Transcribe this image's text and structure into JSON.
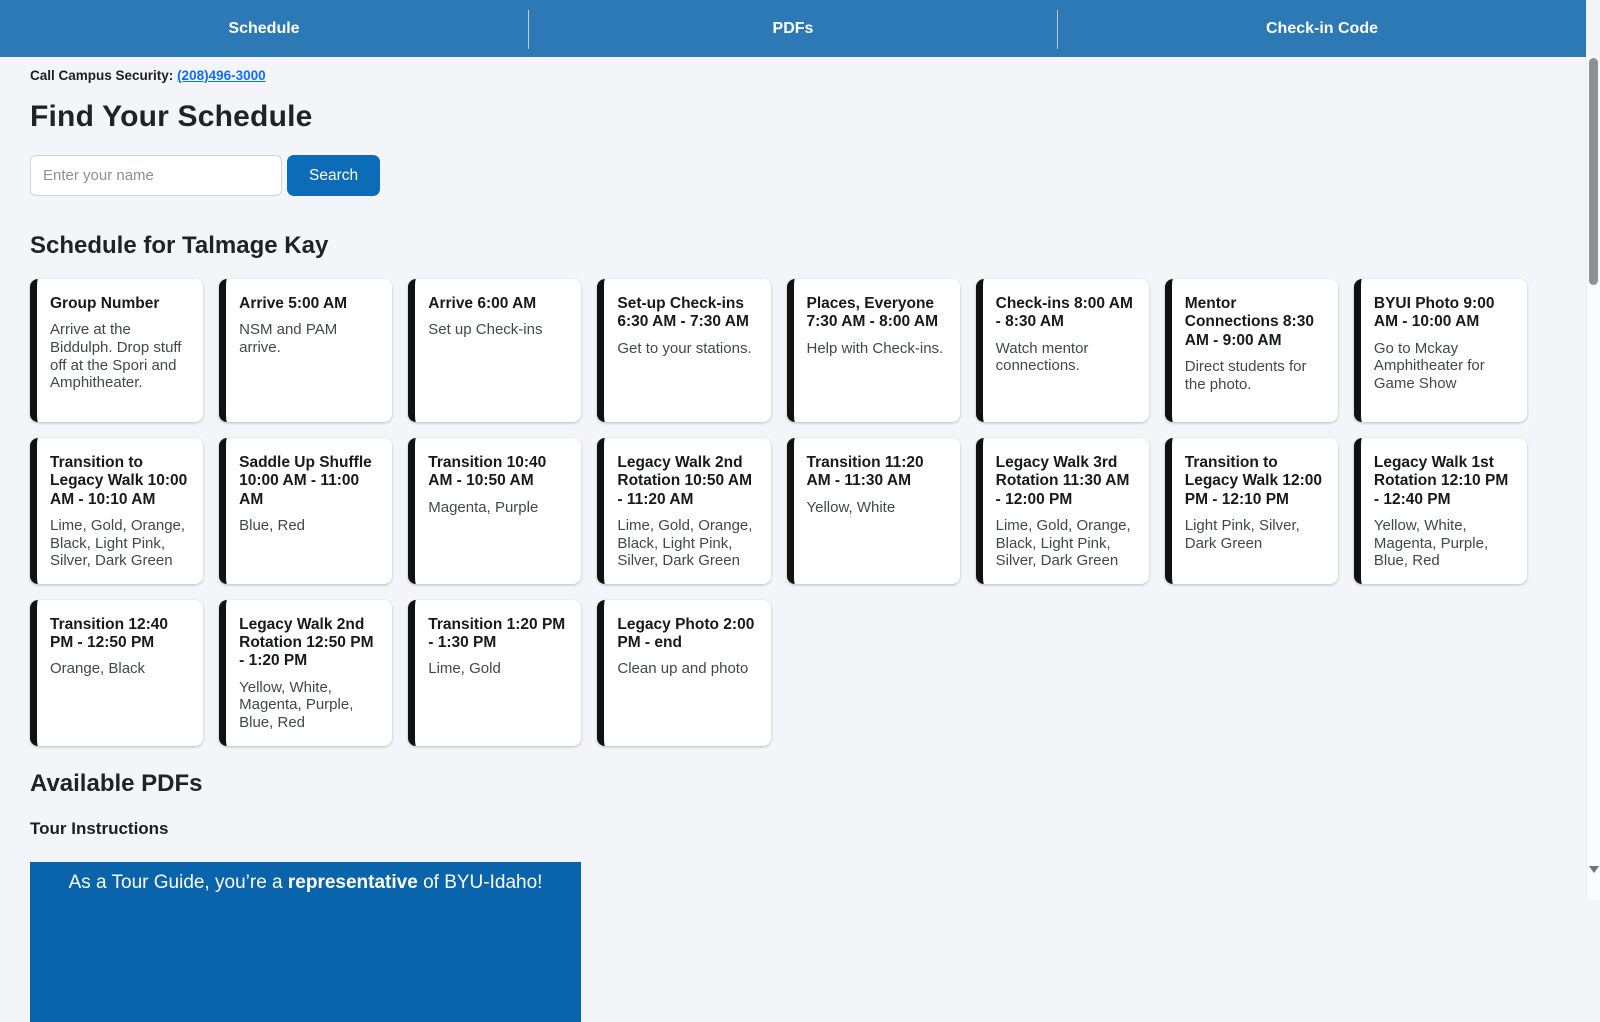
{
  "colors": {
    "nav_bg": "#2d79b5",
    "nav_text": "#ffffff",
    "accent_blue": "#0d6cb8",
    "banner_bg": "#0a64ab",
    "link_blue": "#0d6efd",
    "page_bg": "#f3f5f8",
    "card_bg": "#ffffff",
    "card_accent": "#111111",
    "title_text": "#17191c",
    "body_text": "#43474c"
  },
  "nav": {
    "tabs": [
      {
        "label": "Schedule"
      },
      {
        "label": "PDFs"
      },
      {
        "label": "Check-in Code"
      }
    ]
  },
  "security": {
    "label": "Call Campus Security:",
    "phone": "(208)496-3000"
  },
  "search": {
    "heading": "Find Your Schedule",
    "placeholder": "Enter your name",
    "button": "Search"
  },
  "schedule": {
    "heading": "Schedule for Talmage Kay",
    "cards": [
      {
        "title": "Group Number",
        "description": "Arrive at the Biddulph. Drop stuff off at the Spori and Amphitheater."
      },
      {
        "title": "Arrive 5:00 AM",
        "description": "NSM and PAM arrive."
      },
      {
        "title": "Arrive 6:00 AM",
        "description": "Set up Check-ins"
      },
      {
        "title": "Set-up Check-ins 6:30 AM - 7:30 AM",
        "description": "Get to your stations."
      },
      {
        "title": "Places, Everyone 7:30 AM - 8:00 AM",
        "description": "Help with Check-ins."
      },
      {
        "title": "Check-ins 8:00 AM - 8:30 AM",
        "description": "Watch mentor connections."
      },
      {
        "title": "Mentor Connections 8:30 AM - 9:00 AM",
        "description": "Direct students for the photo."
      },
      {
        "title": "BYUI Photo 9:00 AM - 10:00 AM",
        "description": "Go to Mckay Amphitheater for Game Show"
      },
      {
        "title": "Transition to Legacy Walk 10:00 AM - 10:10 AM",
        "description": "Lime, Gold, Orange, Black, Light Pink, Silver, Dark Green"
      },
      {
        "title": "Saddle Up Shuffle 10:00 AM - 11:00 AM",
        "description": "Blue, Red"
      },
      {
        "title": "Transition 10:40 AM - 10:50 AM",
        "description": "Magenta, Purple"
      },
      {
        "title": "Legacy Walk 2nd Rotation 10:50 AM - 11:20 AM",
        "description": "Lime, Gold, Orange, Black, Light Pink, Silver, Dark Green"
      },
      {
        "title": "Transition 11:20 AM - 11:30 AM",
        "description": "Yellow, White"
      },
      {
        "title": "Legacy Walk 3rd Rotation 11:30 AM - 12:00 PM",
        "description": "Lime, Gold, Orange, Black, Light Pink, Silver, Dark Green"
      },
      {
        "title": "Transition to Legacy Walk 12:00 PM - 12:10 PM",
        "description": "Light Pink, Silver, Dark Green"
      },
      {
        "title": "Legacy Walk 1st Rotation 12:10 PM - 12:40 PM",
        "description": "Yellow, White, Magenta, Purple, Blue, Red"
      },
      {
        "title": "Transition 12:40 PM - 12:50 PM",
        "description": "Orange, Black"
      },
      {
        "title": "Legacy Walk 2nd Rotation 12:50 PM - 1:20 PM",
        "description": "Yellow, White, Magenta, Purple, Blue, Red"
      },
      {
        "title": "Transition 1:20 PM - 1:30 PM",
        "description": "Lime, Gold"
      },
      {
        "title": "Legacy Photo 2:00 PM - end",
        "description": "Clean up and photo"
      }
    ]
  },
  "pdfs": {
    "heading": "Available PDFs",
    "subheading": "Tour Instructions",
    "banner": {
      "prefix": "As a Tour Guide, you’re a ",
      "highlight": "representative",
      "suffix": " of BYU-Idaho!"
    }
  }
}
